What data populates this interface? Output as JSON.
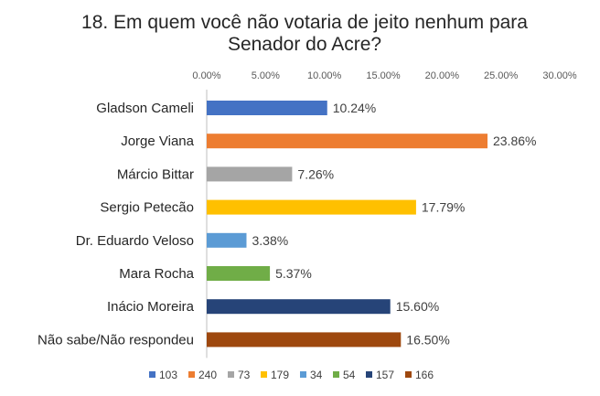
{
  "chart_data": {
    "type": "bar",
    "orientation": "horizontal",
    "title_lines": [
      "18. Em quem você não votaria de jeito nenhum para",
      "Senador do Acre?"
    ],
    "categories": [
      "Gladson Cameli",
      "Jorge Viana",
      "Márcio Bittar",
      "Sergio Petecão",
      "Dr. Eduardo Veloso",
      "Mara Rocha",
      "Inácio Moreira",
      "Não sabe/Não respondeu"
    ],
    "values": [
      10.24,
      23.86,
      7.26,
      17.79,
      3.38,
      5.37,
      15.6,
      16.5
    ],
    "data_labels": [
      "10.24%",
      "23.86%",
      "7.26%",
      "17.79%",
      "3.38%",
      "5.37%",
      "15.60%",
      "16.50%"
    ],
    "colors": [
      "#4472C4",
      "#ED7D31",
      "#A5A5A5",
      "#FFC000",
      "#5B9BD5",
      "#70AD47",
      "#264478",
      "#9E480E"
    ],
    "xlim": [
      0,
      30
    ],
    "x_ticks": [
      0,
      5,
      10,
      15,
      20,
      25,
      30
    ],
    "x_tick_labels": [
      "0.00%",
      "5.00%",
      "10.00%",
      "15.00%",
      "20.00%",
      "25.00%",
      "30.00%"
    ],
    "x_axis_position": "top",
    "grid": false,
    "legend_position": "bottom",
    "legend_entries": [
      "103",
      "240",
      "73",
      "179",
      "34",
      "54",
      "157",
      "166"
    ]
  }
}
